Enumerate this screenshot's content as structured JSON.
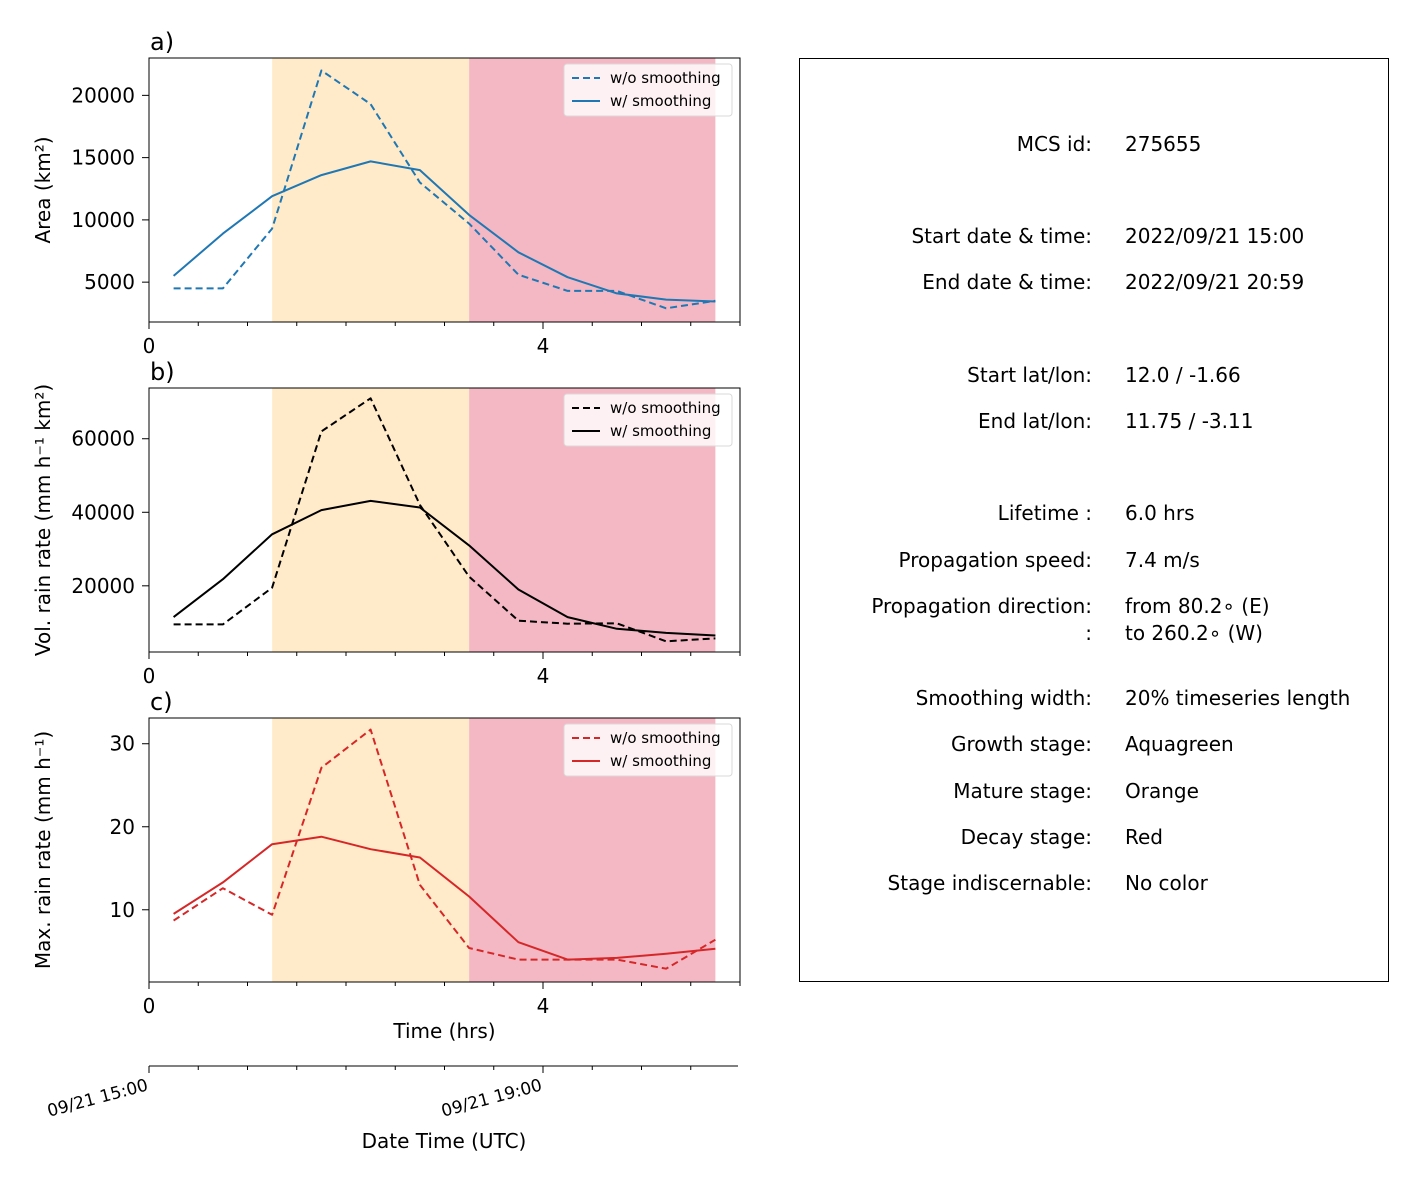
{
  "chart_data": [
    {
      "type": "line",
      "panel_label": "a)",
      "ylabel": "Area  (km²)",
      "xlabel": "",
      "xlim": [
        0,
        6
      ],
      "ylim": [
        1800,
        23000
      ],
      "xticks": [
        0,
        4
      ],
      "xtick_labels": [
        "0",
        "4"
      ],
      "yticks": [
        5000,
        10000,
        15000,
        20000
      ],
      "ytick_labels": [
        "5000",
        "10000",
        "15000",
        "20000"
      ],
      "legend_position": "upper right",
      "x": [
        0.25,
        0.75,
        1.25,
        1.75,
        2.25,
        2.75,
        3.25,
        3.75,
        4.25,
        4.75,
        5.25,
        5.75
      ],
      "stages": [
        {
          "stage": "mature",
          "x0": 1.25,
          "x1": 3.25,
          "color": "#ffebc9"
        },
        {
          "stage": "decay",
          "x0": 3.25,
          "x1": 5.75,
          "color": "#f3b8c4"
        }
      ],
      "series": [
        {
          "name": "w/o smoothing",
          "style": "dashed",
          "color": "#1f77b4",
          "values": [
            4500,
            4500,
            9300,
            22000,
            19300,
            13000,
            9700,
            5600,
            4300,
            4300,
            2900,
            3500
          ]
        },
        {
          "name": "w/ smoothing",
          "style": "solid",
          "color": "#1f77b4",
          "values": [
            5500,
            8900,
            11900,
            13600,
            14700,
            14000,
            10400,
            7400,
            5400,
            4100,
            3600,
            3450
          ]
        }
      ]
    },
    {
      "type": "line",
      "panel_label": "b)",
      "ylabel": "Vol. rain rate (mm h⁻¹ km²)",
      "xlabel": "",
      "xlim": [
        0,
        6
      ],
      "ylim": [
        2000,
        73800
      ],
      "xticks": [
        0,
        4
      ],
      "xtick_labels": [
        "0",
        "4"
      ],
      "yticks": [
        20000,
        40000,
        60000
      ],
      "ytick_labels": [
        "20000",
        "40000",
        "60000"
      ],
      "legend_position": "upper right",
      "x": [
        0.25,
        0.75,
        1.25,
        1.75,
        2.25,
        2.75,
        3.25,
        3.75,
        4.25,
        4.75,
        5.25,
        5.75
      ],
      "stages": [
        {
          "stage": "mature",
          "x0": 1.25,
          "x1": 3.25,
          "color": "#ffebc9"
        },
        {
          "stage": "decay",
          "x0": 3.25,
          "x1": 5.75,
          "color": "#f3b8c4"
        }
      ],
      "series": [
        {
          "name": "w/o smoothing",
          "style": "dashed",
          "color": "#000000",
          "values": [
            9500,
            9500,
            19500,
            62000,
            71000,
            42000,
            22500,
            10500,
            9700,
            9800,
            4900,
            5700
          ]
        },
        {
          "name": "w/ smoothing",
          "style": "solid",
          "color": "#000000",
          "values": [
            11500,
            21800,
            34000,
            40600,
            43100,
            41300,
            31000,
            19000,
            11500,
            8300,
            7200,
            6500
          ]
        }
      ]
    },
    {
      "type": "line",
      "panel_label": "c)",
      "ylabel": "Max. rain rate  (mm h⁻¹)",
      "xlabel": "Time (hrs)",
      "xlim": [
        0,
        6
      ],
      "ylim": [
        1.3,
        33.1
      ],
      "xticks": [
        0,
        4
      ],
      "xtick_labels": [
        "0",
        "4"
      ],
      "yticks": [
        10,
        20,
        30
      ],
      "ytick_labels": [
        "10",
        "20",
        "30"
      ],
      "legend_position": "upper right",
      "x": [
        0.25,
        0.75,
        1.25,
        1.75,
        2.25,
        2.75,
        3.25,
        3.75,
        4.25,
        4.75,
        5.25,
        5.75
      ],
      "stages": [
        {
          "stage": "mature",
          "x0": 1.25,
          "x1": 3.25,
          "color": "#ffebc9"
        },
        {
          "stage": "decay",
          "x0": 3.25,
          "x1": 5.75,
          "color": "#f3b8c4"
        }
      ],
      "series": [
        {
          "name": "w/o smoothing",
          "style": "dashed",
          "color": "#d62728",
          "values": [
            8.7,
            12.6,
            9.4,
            27.1,
            31.7,
            13.0,
            5.4,
            4.0,
            4.0,
            4.0,
            2.9,
            6.4
          ]
        },
        {
          "name": "w/ smoothing",
          "style": "solid",
          "color": "#d62728",
          "values": [
            9.5,
            13.3,
            17.9,
            18.8,
            17.3,
            16.3,
            11.6,
            6.1,
            4.0,
            4.2,
            4.7,
            5.3
          ]
        }
      ]
    }
  ],
  "datetime_axis": {
    "label": "Date Time (UTC)",
    "tick_labels": [
      "09/21 15:00",
      "09/21 19:00"
    ],
    "tick_positions_hrs": [
      0,
      4
    ]
  },
  "info": [
    {
      "label": "MCS id:",
      "value": "275655"
    },
    {
      "label": "Start date & time:",
      "value": "2022/09/21 15:00"
    },
    {
      "label": "End date & time:",
      "value": "2022/09/21 20:59"
    },
    {
      "label": "Start lat/lon:",
      "value": "12.0 / -1.66"
    },
    {
      "label": "End lat/lon:",
      "value": "11.75 / -3.11"
    },
    {
      "label": "Lifetime :",
      "value": "6.0 hrs"
    },
    {
      "label": "Propagation speed:",
      "value": "7.4 m/s"
    },
    {
      "label": "Propagation direction:",
      "value": "from  80.2∘ (E)"
    },
    {
      "label": ":",
      "value": "to   260.2∘ (W)"
    },
    {
      "label": "Smoothing width:",
      "value": "20% timeseries length"
    },
    {
      "label": "Growth stage:",
      "value": "Aquagreen"
    },
    {
      "label": "Mature stage:",
      "value": "Orange"
    },
    {
      "label": "Decay stage:",
      "value": "Red"
    },
    {
      "label": "Stage indiscernable:",
      "value": "No color"
    }
  ]
}
